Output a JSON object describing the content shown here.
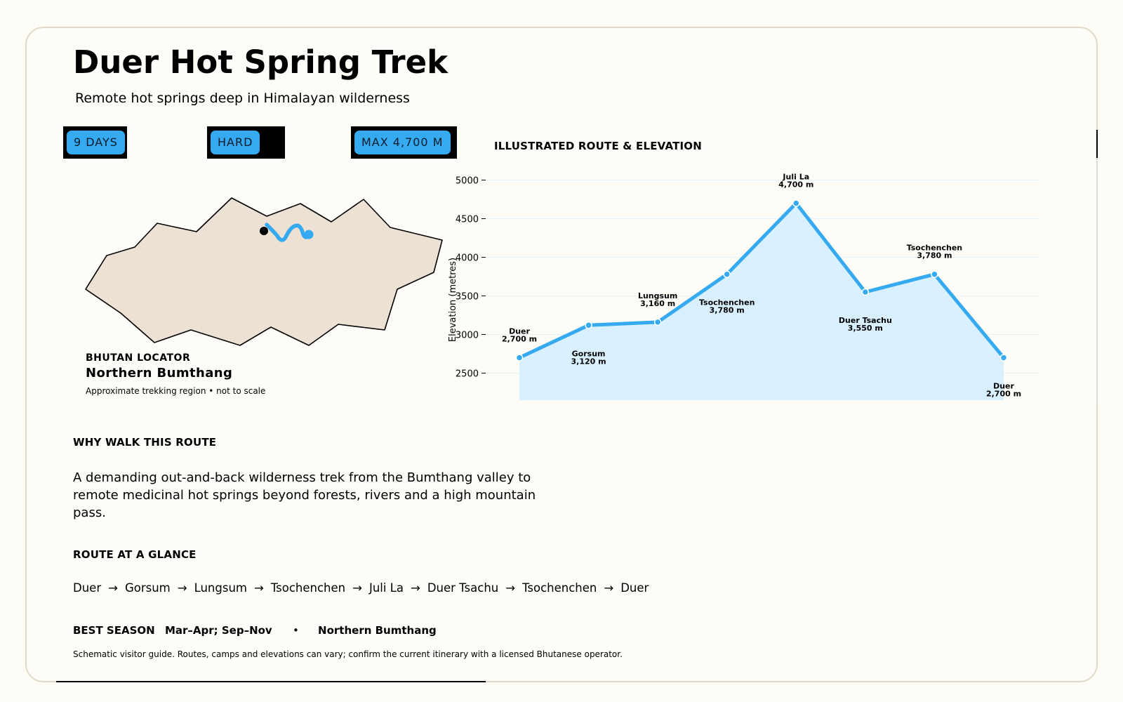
{
  "header": {
    "title": "Duer Hot Spring Trek",
    "subtitle": "Remote hot springs deep in Himalayan wilderness"
  },
  "badges": {
    "days": "9 DAYS",
    "difficulty": "HARD",
    "max_altitude": "MAX 4,700 M"
  },
  "locator": {
    "kicker": "BHUTAN LOCATOR",
    "region": "Northern Bumthang",
    "note": "Approximate trekking region • not to scale"
  },
  "colors": {
    "accent": "#35aaf0",
    "area_fill": "#d8f0ff",
    "land_fill": "#ede1d4",
    "background": "#fdfcf7",
    "card_border": "#e2d8c8"
  },
  "chart_data": {
    "type": "area",
    "title": "ILLUSTRATED ROUTE & ELEVATION",
    "xlabel": "",
    "ylabel": "Elevation (metres)",
    "categories": [
      "Duer",
      "Gorsum",
      "Lungsum",
      "Tsochenchen",
      "Juli La",
      "Duer Tsachu",
      "Tsochenchen",
      "Duer"
    ],
    "values": [
      2700,
      3120,
      3160,
      3780,
      4700,
      3550,
      3780,
      2700
    ],
    "point_labels": [
      "2,700 m",
      "3,120 m",
      "3,160 m",
      "3,780 m",
      "4,700 m",
      "3,550 m",
      "3,780 m",
      "2,700 m"
    ],
    "label_positions": [
      "above",
      "below",
      "above",
      "below",
      "above",
      "below",
      "above",
      "below"
    ],
    "yticks": [
      2500,
      3000,
      3500,
      4000,
      4500,
      5000
    ],
    "ylim": [
      2150,
      5150
    ],
    "grid": true,
    "legend": "none"
  },
  "sections": {
    "why_heading": "WHY WALK THIS ROUTE",
    "why_text": "A demanding out-and-back wilderness trek from the Bumthang valley to remote medicinal hot springs beyond forests, rivers and a high mountain pass.",
    "route_heading": "ROUTE AT A GLANCE",
    "route_stops": [
      "Duer",
      "Gorsum",
      "Lungsum",
      "Tsochenchen",
      "Juli La",
      "Duer Tsachu",
      "Tsochenchen",
      "Duer"
    ],
    "route_arrow": "→",
    "season_label": "BEST SEASON",
    "season_value": "Mar–Apr; Sep–Nov",
    "season_separator": "•",
    "season_region": "Northern Bumthang",
    "disclaimer": "Schematic visitor guide. Routes, camps and elevations can vary; confirm the current itinerary with a licensed Bhutanese operator."
  }
}
